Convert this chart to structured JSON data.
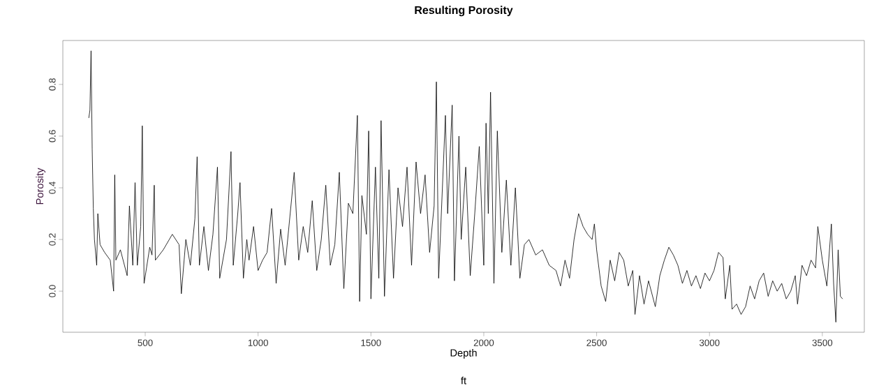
{
  "chart_data": {
    "type": "line",
    "title": "Resulting Porosity",
    "xlabel": "Depth",
    "ylabel": "Porosity",
    "annotations": [
      "ft"
    ],
    "xlim": [
      135,
      3686
    ],
    "ylim": [
      -0.159,
      0.97
    ],
    "xticks": [
      500,
      1000,
      1500,
      2000,
      2500,
      3000,
      3500
    ],
    "yticks": [
      {
        "value": 0,
        "label": "0.0"
      },
      {
        "value": 0.2,
        "label": "0.2"
      },
      {
        "value": 0.4,
        "label": "0.4"
      },
      {
        "value": 0.6,
        "label": "0.6"
      },
      {
        "value": 0.8,
        "label": "0.8"
      }
    ],
    "marker": "none",
    "line_style": "solid",
    "series": [
      {
        "color": "#000000",
        "x": [
          250,
          255,
          260,
          265,
          270,
          275,
          285,
          290,
          300,
          320,
          345,
          360,
          365,
          370,
          390,
          420,
          430,
          445,
          455,
          465,
          480,
          487,
          495,
          520,
          530,
          540,
          545,
          580,
          620,
          650,
          660,
          680,
          700,
          720,
          730,
          740,
          760,
          780,
          800,
          820,
          830,
          860,
          880,
          890,
          910,
          920,
          935,
          950,
          960,
          980,
          1000,
          1020,
          1040,
          1060,
          1080,
          1100,
          1120,
          1140,
          1160,
          1180,
          1200,
          1220,
          1240,
          1260,
          1280,
          1300,
          1320,
          1340,
          1360,
          1380,
          1400,
          1420,
          1440,
          1450,
          1460,
          1480,
          1490,
          1500,
          1520,
          1535,
          1545,
          1560,
          1580,
          1600,
          1620,
          1640,
          1660,
          1680,
          1700,
          1720,
          1740,
          1760,
          1780,
          1790,
          1800,
          1830,
          1840,
          1860,
          1870,
          1890,
          1900,
          1920,
          1940,
          1960,
          1980,
          2000,
          2010,
          2020,
          2030,
          2045,
          2060,
          2080,
          2100,
          2120,
          2140,
          2160,
          2180,
          2200,
          2230,
          2260,
          2290,
          2320,
          2340,
          2360,
          2380,
          2400,
          2420,
          2440,
          2460,
          2480,
          2490,
          2500,
          2520,
          2540,
          2560,
          2580,
          2600,
          2620,
          2640,
          2660,
          2670,
          2690,
          2710,
          2730,
          2760,
          2780,
          2800,
          2820,
          2840,
          2860,
          2880,
          2900,
          2920,
          2940,
          2960,
          2980,
          3000,
          3020,
          3040,
          3060,
          3070,
          3090,
          3100,
          3120,
          3140,
          3160,
          3180,
          3200,
          3220,
          3240,
          3260,
          3280,
          3300,
          3320,
          3340,
          3360,
          3380,
          3390,
          3410,
          3430,
          3450,
          3470,
          3480,
          3500,
          3520,
          3540,
          3550,
          3560,
          3570,
          3580,
          3590
        ],
        "values": [
          0.67,
          0.7,
          0.93,
          0.55,
          0.32,
          0.2,
          0.1,
          0.3,
          0.18,
          0.15,
          0.12,
          0.0,
          0.45,
          0.12,
          0.16,
          0.06,
          0.33,
          0.1,
          0.42,
          0.1,
          0.25,
          0.64,
          0.03,
          0.17,
          0.14,
          0.41,
          0.12,
          0.16,
          0.22,
          0.18,
          -0.01,
          0.2,
          0.1,
          0.28,
          0.52,
          0.1,
          0.25,
          0.08,
          0.22,
          0.48,
          0.05,
          0.2,
          0.54,
          0.1,
          0.3,
          0.42,
          0.05,
          0.2,
          0.12,
          0.25,
          0.08,
          0.12,
          0.15,
          0.32,
          0.03,
          0.24,
          0.1,
          0.28,
          0.46,
          0.12,
          0.25,
          0.15,
          0.35,
          0.08,
          0.2,
          0.41,
          0.1,
          0.18,
          0.46,
          0.01,
          0.34,
          0.3,
          0.68,
          -0.04,
          0.37,
          0.22,
          0.62,
          -0.03,
          0.48,
          0.05,
          0.66,
          -0.02,
          0.47,
          0.05,
          0.4,
          0.25,
          0.48,
          0.1,
          0.5,
          0.3,
          0.45,
          0.15,
          0.33,
          0.81,
          0.05,
          0.68,
          0.3,
          0.72,
          0.04,
          0.6,
          0.2,
          0.48,
          0.06,
          0.3,
          0.56,
          0.1,
          0.65,
          0.3,
          0.77,
          0.03,
          0.62,
          0.15,
          0.43,
          0.1,
          0.4,
          0.05,
          0.18,
          0.2,
          0.14,
          0.16,
          0.1,
          0.08,
          0.02,
          0.12,
          0.05,
          0.2,
          0.3,
          0.25,
          0.22,
          0.2,
          0.26,
          0.16,
          0.02,
          -0.04,
          0.12,
          0.04,
          0.15,
          0.12,
          0.02,
          0.08,
          -0.09,
          0.06,
          -0.05,
          0.04,
          -0.06,
          0.06,
          0.12,
          0.17,
          0.14,
          0.1,
          0.03,
          0.08,
          0.02,
          0.06,
          0.01,
          0.07,
          0.04,
          0.08,
          0.15,
          0.13,
          -0.03,
          0.1,
          -0.07,
          -0.05,
          -0.09,
          -0.06,
          0.02,
          -0.03,
          0.04,
          0.07,
          -0.02,
          0.04,
          0.0,
          0.03,
          -0.03,
          0.0,
          0.06,
          -0.05,
          0.1,
          0.06,
          0.12,
          0.09,
          0.25,
          0.12,
          0.02,
          0.26,
          0.03,
          -0.12,
          0.16,
          -0.02,
          -0.03
        ]
      }
    ]
  }
}
